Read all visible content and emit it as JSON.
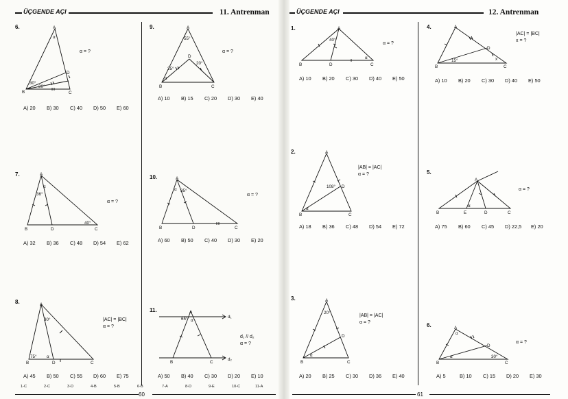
{
  "left_page": {
    "header": "ÜÇGENDE AÇI",
    "title": "11. Antrenman",
    "page_number": "60",
    "answer_keys": [
      "1-C",
      "2-C",
      "3-D",
      "4-B",
      "5-B",
      "6-B",
      "7-A",
      "8-D",
      "9-E",
      "10-C",
      "11-A"
    ]
  },
  "right_page": {
    "header": "ÜÇGENDE AÇI",
    "title": "12. Antrenman",
    "page_number": "61"
  },
  "questions": {
    "q6": {
      "num": "6.",
      "lines": [
        "α = ?"
      ],
      "labels": {
        "A": "A",
        "B": "B",
        "C": "C",
        "D": "D",
        "alpha": "α",
        "ang1": "30°",
        "ang2": "20°"
      },
      "options": [
        "A) 20",
        "B) 30",
        "C) 40",
        "D) 50",
        "E) 60"
      ]
    },
    "q7": {
      "num": "7.",
      "lines": [
        "α = ?"
      ],
      "labels": {
        "A": "A",
        "B": "B",
        "C": "C",
        "D": "D",
        "alpha": "α",
        "ang1": "36°",
        "ang2": "40°"
      },
      "options": [
        "A) 32",
        "B) 36",
        "C) 48",
        "D) 54",
        "E) 62"
      ]
    },
    "q8": {
      "num": "8.",
      "lines": [
        "|AC| = |BC|",
        "α = ?"
      ],
      "labels": {
        "A": "A",
        "B": "B",
        "C": "C",
        "D": "D",
        "alpha": "α",
        "ang1": "30°",
        "ang2": "75°"
      },
      "options": [
        "A) 45",
        "B) 50",
        "C) 55",
        "D) 60",
        "E) 75"
      ]
    },
    "q9": {
      "num": "9.",
      "lines": [
        "α = ?"
      ],
      "labels": {
        "A": "A",
        "B": "B",
        "C": "C",
        "D": "D",
        "alpha": "α",
        "ang1": "55°",
        "ang2": "25°",
        "ang3": "20°"
      },
      "options": [
        "A) 10",
        "B) 15",
        "C) 20",
        "D) 30",
        "E) 40"
      ]
    },
    "q10": {
      "num": "10.",
      "lines": [
        "α = ?"
      ],
      "labels": {
        "A": "A",
        "B": "B",
        "C": "C",
        "D": "D",
        "alpha": "α",
        "ang1": "35°"
      },
      "options": [
        "A) 60",
        "B) 50",
        "C) 40",
        "D) 30",
        "E) 20"
      ]
    },
    "q11": {
      "num": "11.",
      "lines": [
        "d₁ // d₂",
        "α = ?"
      ],
      "labels": {
        "A": "A",
        "B": "B",
        "C": "C",
        "alpha": "α",
        "ang1": "65°",
        "d1": "d₁",
        "d2": "d₂"
      },
      "options": [
        "A) 50",
        "B) 40",
        "C) 30",
        "D) 20",
        "E) 10"
      ]
    },
    "q1": {
      "num": "1.",
      "lines": [
        "α = ?"
      ],
      "labels": {
        "A": "A",
        "B": "B",
        "C": "C",
        "D": "D",
        "alpha": "α",
        "ang1": "40°"
      },
      "options": [
        "A) 10",
        "B) 20",
        "C) 30",
        "D) 40",
        "E) 50"
      ]
    },
    "q2": {
      "num": "2.",
      "lines": [
        "|AB| = |AC|",
        "α = ?"
      ],
      "labels": {
        "A": "A",
        "B": "B",
        "C": "C",
        "D": "D",
        "alpha": "α",
        "ang1": "108°"
      },
      "options": [
        "A) 18",
        "B) 36",
        "C) 48",
        "D) 54",
        "E) 72"
      ]
    },
    "q3": {
      "num": "3.",
      "lines": [
        "|AB| = |AC|",
        "α = ?"
      ],
      "labels": {
        "A": "A",
        "B": "B",
        "C": "C",
        "D": "D",
        "alpha": "α",
        "ang1": "20°"
      },
      "options": [
        "A) 20",
        "B) 25",
        "C) 30",
        "D) 36",
        "E) 40"
      ]
    },
    "q4": {
      "num": "4.",
      "lines": [
        "|AC| = |BC|",
        "x = ?"
      ],
      "labels": {
        "A": "A",
        "B": "B",
        "C": "C",
        "D": "D",
        "x": "x",
        "ang1": "15°"
      },
      "options": [
        "A) 10",
        "B) 20",
        "C) 30",
        "D) 40",
        "E) 50"
      ]
    },
    "q5": {
      "num": "5.",
      "lines": [
        "α = ?"
      ],
      "labels": {
        "A": "A",
        "B": "B",
        "C": "C",
        "D": "D",
        "E": "E",
        "alpha": "α"
      },
      "options": [
        "A) 75",
        "B) 60",
        "C) 45",
        "D) 22,5",
        "E) 20"
      ]
    },
    "q6r": {
      "num": "6.",
      "lines": [
        "α = ?"
      ],
      "labels": {
        "A": "A",
        "B": "B",
        "C": "C",
        "D": "D",
        "alpha": "α",
        "ang1": "30°"
      },
      "options": [
        "A) 5",
        "B) 10",
        "C) 15",
        "D) 20",
        "E) 30"
      ]
    }
  }
}
